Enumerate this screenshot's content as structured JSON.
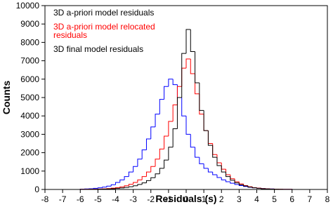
{
  "chart_data": {
    "type": "histogram",
    "xlabel": "Residuals (s)",
    "ylabel": "Counts",
    "bins": [
      -6,
      -5.75,
      -5.5,
      -5.25,
      -5,
      -4.75,
      -4.5,
      -4.25,
      -4,
      -3.75,
      -3.5,
      -3.25,
      -3,
      -2.75,
      -2.5,
      -2.25,
      -2,
      -1.75,
      -1.5,
      -1.25,
      -1,
      -0.75,
      -0.5,
      -0.25,
      0,
      0.25,
      0.5,
      0.75,
      1,
      1.25,
      1.5,
      1.75,
      2,
      2.25,
      2.5,
      2.75,
      3,
      3.25,
      3.5,
      3.75,
      4,
      4.25,
      4.5,
      4.75,
      5,
      5.25,
      5.5,
      5.75,
      6
    ],
    "series": [
      {
        "name": "3D a-priori model residuals",
        "color": "#0000ff",
        "values": [
          20,
          30,
          40,
          60,
          90,
          130,
          180,
          260,
          380,
          520,
          700,
          950,
          1250,
          1650,
          2150,
          2750,
          3400,
          4100,
          4900,
          5600,
          6000,
          5700,
          5000,
          4000,
          3000,
          2300,
          1750,
          1400,
          1150,
          950,
          800,
          650,
          520,
          420,
          340,
          270,
          210,
          160,
          120,
          90,
          70,
          50,
          40,
          30,
          20,
          15,
          10,
          10
        ]
      },
      {
        "name": "3D a-priori model relocated residuals",
        "color": "#ff0000",
        "values": [
          10,
          10,
          15,
          20,
          25,
          35,
          50,
          70,
          100,
          140,
          200,
          280,
          380,
          520,
          700,
          950,
          1250,
          1650,
          2200,
          2900,
          3700,
          4600,
          5600,
          6600,
          7100,
          6300,
          5200,
          4100,
          3200,
          2500,
          1900,
          1450,
          1100,
          800,
          580,
          420,
          300,
          210,
          150,
          100,
          70,
          50,
          35,
          25,
          20,
          15,
          10,
          10
        ]
      },
      {
        "name": "3D final model residuals",
        "color": "#000000",
        "values": [
          5,
          5,
          10,
          10,
          15,
          20,
          30,
          40,
          60,
          80,
          110,
          150,
          200,
          270,
          360,
          480,
          640,
          850,
          1150,
          1600,
          2300,
          3300,
          5000,
          7400,
          8700,
          7500,
          5800,
          4300,
          3200,
          2400,
          1750,
          1300,
          950,
          700,
          500,
          360,
          260,
          190,
          130,
          90,
          60,
          40,
          30,
          20,
          15,
          10,
          5,
          5
        ]
      }
    ],
    "xlim": [
      -8,
      8
    ],
    "xticks": [
      -8,
      -7,
      -6,
      -5,
      -4,
      -3,
      -2,
      -1,
      0,
      1,
      2,
      3,
      4,
      5,
      6,
      7,
      8
    ],
    "ylim": [
      0,
      10000
    ],
    "yticks": [
      0,
      1000,
      2000,
      3000,
      4000,
      5000,
      6000,
      7000,
      8000,
      9000,
      10000
    ],
    "legend": "upper left",
    "grid": false
  }
}
